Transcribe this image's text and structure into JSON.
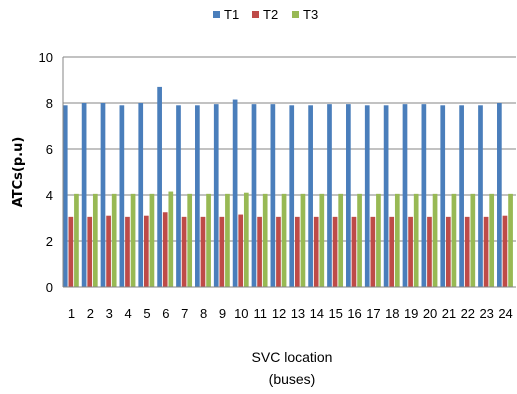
{
  "colors": {
    "T1": "#4a7ebb",
    "T2": "#be4b48",
    "T3": "#98b954",
    "axis": "#868686",
    "grid": "#868686"
  },
  "chart_data": {
    "type": "bar",
    "title": "",
    "xlabel_lines": [
      "SVC location",
      "(buses)"
    ],
    "ylabel": "ATCs(p.u)",
    "ylim": [
      0,
      10
    ],
    "yticks": [
      "0",
      "2",
      "4",
      "6",
      "8",
      "10"
    ],
    "grid": "horizontal major gridlines",
    "legend_position": "top",
    "categories": [
      "1",
      "2",
      "3",
      "4",
      "5",
      "6",
      "7",
      "8",
      "9",
      "10",
      "11",
      "12",
      "13",
      "14",
      "15",
      "16",
      "17",
      "18",
      "19",
      "20",
      "21",
      "22",
      "23",
      "24"
    ],
    "series": [
      {
        "name": "T1",
        "color": "#4a7ebb",
        "values": [
          7.9,
          8.0,
          8.0,
          7.9,
          8.0,
          8.7,
          7.9,
          7.9,
          7.95,
          8.15,
          7.95,
          7.95,
          7.9,
          7.9,
          7.95,
          7.95,
          7.9,
          7.9,
          7.95,
          7.95,
          7.9,
          7.9,
          7.9,
          8.0
        ]
      },
      {
        "name": "T2",
        "color": "#be4b48",
        "values": [
          3.05,
          3.05,
          3.1,
          3.05,
          3.1,
          3.25,
          3.05,
          3.05,
          3.05,
          3.15,
          3.05,
          3.05,
          3.05,
          3.05,
          3.05,
          3.05,
          3.05,
          3.05,
          3.05,
          3.05,
          3.05,
          3.05,
          3.05,
          3.1
        ]
      },
      {
        "name": "T3",
        "color": "#98b954",
        "values": [
          4.05,
          4.05,
          4.05,
          4.05,
          4.05,
          4.15,
          4.05,
          4.05,
          4.05,
          4.1,
          4.05,
          4.05,
          4.05,
          4.05,
          4.05,
          4.05,
          4.05,
          4.05,
          4.05,
          4.05,
          4.05,
          4.05,
          4.05,
          4.05
        ]
      }
    ]
  }
}
